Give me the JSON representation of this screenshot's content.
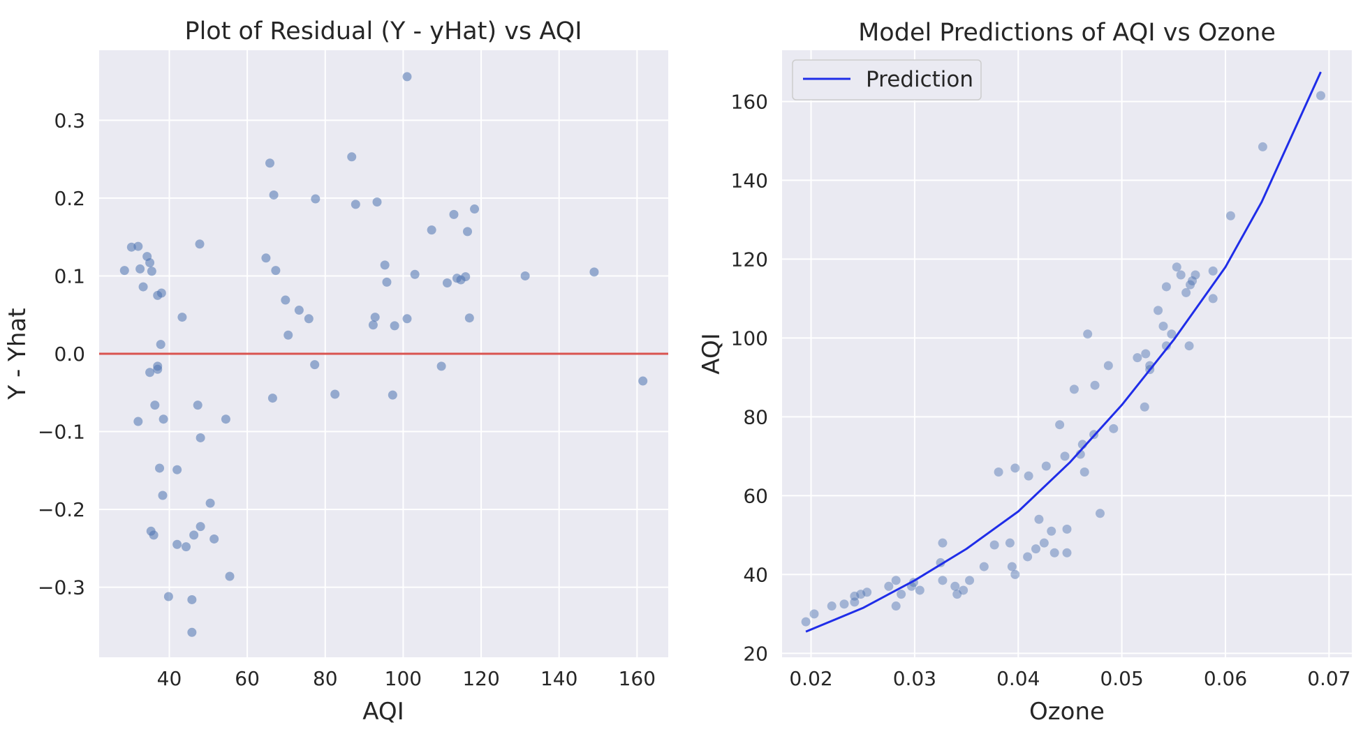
{
  "chart_data": [
    {
      "type": "scatter",
      "title": "Plot of Residual (Y - yHat) vs AQI",
      "xlabel": "AQI",
      "ylabel": "Y - Yhat",
      "xlim": [
        22,
        168
      ],
      "ylim": [
        -0.39,
        0.39
      ],
      "xticks": [
        40,
        60,
        80,
        100,
        120,
        140,
        160
      ],
      "yticks": [
        -0.3,
        -0.2,
        -0.1,
        0.0,
        0.1,
        0.2,
        0.3
      ],
      "ytick_labels": [
        "−0.3",
        "−0.2",
        "−0.1",
        "0.0",
        "0.1",
        "0.2",
        "0.3"
      ],
      "grid": true,
      "reference_line": {
        "y": 0.0,
        "color": "#d9534f"
      },
      "point_color": "#4c72b0",
      "point_alpha": 0.55,
      "points": [
        [
          28.5,
          0.107
        ],
        [
          30.3,
          0.137
        ],
        [
          32,
          0.138
        ],
        [
          32.5,
          0.109
        ],
        [
          33.3,
          0.086
        ],
        [
          34.3,
          0.125
        ],
        [
          35,
          0.117
        ],
        [
          35.5,
          0.106
        ],
        [
          37,
          0.075
        ],
        [
          38,
          0.078
        ],
        [
          32,
          -0.087
        ],
        [
          35,
          -0.024
        ],
        [
          36.3,
          -0.066
        ],
        [
          37,
          -0.016
        ],
        [
          37,
          -0.02
        ],
        [
          37.8,
          0.012
        ],
        [
          38.5,
          -0.084
        ],
        [
          37.5,
          -0.147
        ],
        [
          38.3,
          -0.182
        ],
        [
          35.3,
          -0.228
        ],
        [
          36,
          -0.233
        ],
        [
          39.8,
          -0.312
        ],
        [
          42,
          -0.149
        ],
        [
          42,
          -0.245
        ],
        [
          44.3,
          -0.248
        ],
        [
          43.3,
          0.047
        ],
        [
          45.8,
          -0.316
        ],
        [
          45.8,
          -0.358
        ],
        [
          46.3,
          -0.233
        ],
        [
          47.3,
          -0.066
        ],
        [
          47.8,
          0.141
        ],
        [
          48,
          -0.108
        ],
        [
          48,
          -0.222
        ],
        [
          50.5,
          -0.192
        ],
        [
          51.5,
          -0.238
        ],
        [
          54.5,
          -0.084
        ],
        [
          55.5,
          -0.286
        ],
        [
          64.8,
          0.123
        ],
        [
          65.8,
          0.245
        ],
        [
          66.5,
          -0.057
        ],
        [
          66.8,
          0.204
        ],
        [
          67.3,
          0.107
        ],
        [
          69.8,
          0.069
        ],
        [
          70.5,
          0.024
        ],
        [
          73.3,
          0.056
        ],
        [
          75.8,
          0.045
        ],
        [
          77.3,
          -0.014
        ],
        [
          77.5,
          0.199
        ],
        [
          82.5,
          -0.052
        ],
        [
          86.8,
          0.253
        ],
        [
          87.8,
          0.192
        ],
        [
          92.3,
          0.037
        ],
        [
          92.8,
          0.047
        ],
        [
          93.3,
          0.195
        ],
        [
          95.3,
          0.114
        ],
        [
          95.8,
          0.092
        ],
        [
          97.3,
          -0.053
        ],
        [
          97.8,
          0.036
        ],
        [
          101,
          0.045
        ],
        [
          101,
          0.356
        ],
        [
          103,
          0.102
        ],
        [
          107.3,
          0.159
        ],
        [
          109.8,
          -0.016
        ],
        [
          111.3,
          0.091
        ],
        [
          113,
          0.179
        ],
        [
          113.8,
          0.097
        ],
        [
          114.8,
          0.095
        ],
        [
          116,
          0.099
        ],
        [
          116.5,
          0.157
        ],
        [
          117,
          0.046
        ],
        [
          118.3,
          0.186
        ],
        [
          131.3,
          0.1
        ],
        [
          149,
          0.105
        ],
        [
          161.5,
          -0.035
        ]
      ]
    },
    {
      "type": "scatter",
      "title": "Model Predictions of AQI vs Ozone",
      "xlabel": "Ozone",
      "ylabel": "AQI",
      "xlim": [
        0.0172,
        0.0722
      ],
      "ylim": [
        19,
        173
      ],
      "xticks": [
        0.02,
        0.03,
        0.04,
        0.05,
        0.06,
        0.07
      ],
      "xtick_labels": [
        "0.02",
        "0.03",
        "0.04",
        "0.05",
        "0.06",
        "0.07"
      ],
      "yticks": [
        20,
        40,
        60,
        80,
        100,
        120,
        140,
        160
      ],
      "grid": true,
      "legend": {
        "position": "top-left",
        "entries": [
          "Prediction"
        ]
      },
      "point_color": "#4c72b0",
      "point_alpha": 0.45,
      "points": [
        [
          0.0195,
          28
        ],
        [
          0.0203,
          30
        ],
        [
          0.022,
          32
        ],
        [
          0.0232,
          32.5
        ],
        [
          0.0242,
          34.5
        ],
        [
          0.0242,
          33
        ],
        [
          0.0248,
          35
        ],
        [
          0.0254,
          35.5
        ],
        [
          0.0275,
          37
        ],
        [
          0.0282,
          38.5
        ],
        [
          0.0282,
          32
        ],
        [
          0.0287,
          35
        ],
        [
          0.0297,
          37
        ],
        [
          0.0299,
          38
        ],
        [
          0.0305,
          36
        ],
        [
          0.0325,
          43
        ],
        [
          0.0327,
          48
        ],
        [
          0.0327,
          38.5
        ],
        [
          0.0339,
          37
        ],
        [
          0.0341,
          35
        ],
        [
          0.0347,
          36
        ],
        [
          0.0353,
          38.5
        ],
        [
          0.0367,
          42
        ],
        [
          0.0377,
          47.5
        ],
        [
          0.0381,
          66
        ],
        [
          0.0392,
          48
        ],
        [
          0.0394,
          42
        ],
        [
          0.0397,
          40
        ],
        [
          0.0397,
          67
        ],
        [
          0.041,
          65
        ],
        [
          0.0409,
          44.5
        ],
        [
          0.0417,
          46.5
        ],
        [
          0.042,
          54
        ],
        [
          0.0425,
          48
        ],
        [
          0.0427,
          67.5
        ],
        [
          0.0432,
          51
        ],
        [
          0.0435,
          45.5
        ],
        [
          0.044,
          78
        ],
        [
          0.0445,
          70
        ],
        [
          0.0447,
          51.5
        ],
        [
          0.0447,
          45.5
        ],
        [
          0.0454,
          87
        ],
        [
          0.046,
          70.5
        ],
        [
          0.0462,
          73
        ],
        [
          0.0464,
          66
        ],
        [
          0.0467,
          101
        ],
        [
          0.0473,
          75.5
        ],
        [
          0.0474,
          88
        ],
        [
          0.0479,
          55.5
        ],
        [
          0.0487,
          93
        ],
        [
          0.0492,
          77
        ],
        [
          0.0515,
          95
        ],
        [
          0.0522,
          82.5
        ],
        [
          0.0523,
          96
        ],
        [
          0.0527,
          92
        ],
        [
          0.0527,
          93
        ],
        [
          0.0535,
          107
        ],
        [
          0.054,
          103
        ],
        [
          0.0543,
          113
        ],
        [
          0.0543,
          98
        ],
        [
          0.0548,
          101
        ],
        [
          0.0553,
          118
        ],
        [
          0.0557,
          116
        ],
        [
          0.0562,
          111.5
        ],
        [
          0.0565,
          98
        ],
        [
          0.0566,
          113.5
        ],
        [
          0.0568,
          114.5
        ],
        [
          0.0571,
          116
        ],
        [
          0.0588,
          110
        ],
        [
          0.0588,
          117
        ],
        [
          0.0605,
          131
        ],
        [
          0.0636,
          148.5
        ],
        [
          0.0692,
          161.5
        ]
      ],
      "series": [
        {
          "name": "Prediction",
          "type": "line",
          "color": "#1f2de8",
          "points": [
            [
              0.0195,
              25.5
            ],
            [
              0.025,
              31.5
            ],
            [
              0.03,
              38.5
            ],
            [
              0.035,
              46.5
            ],
            [
              0.04,
              56
            ],
            [
              0.045,
              68.5
            ],
            [
              0.05,
              83
            ],
            [
              0.055,
              99.5
            ],
            [
              0.06,
              118
            ],
            [
              0.0635,
              134.5
            ],
            [
              0.0692,
              167.5
            ]
          ]
        }
      ]
    }
  ]
}
